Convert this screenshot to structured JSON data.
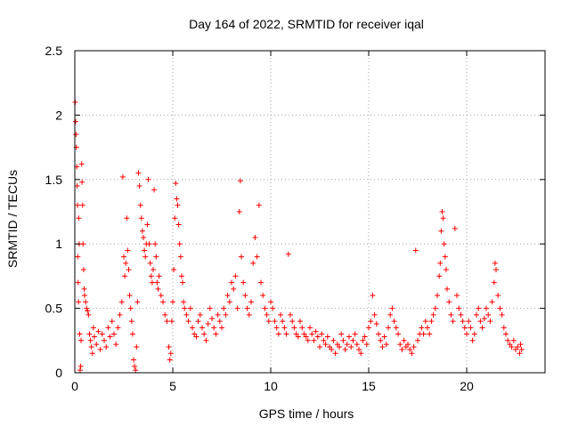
{
  "chart_data": {
    "type": "scatter",
    "title": "Day 164 of 2022, SRMTID for receiver iqal",
    "xlabel": "GPS time / hours",
    "ylabel": "SRMTID / TECUs",
    "xlim": [
      0,
      24
    ],
    "ylim": [
      0,
      2.5
    ],
    "xticks": [
      0,
      5,
      10,
      15,
      20
    ],
    "xtick_labels": [
      "0",
      "5",
      "10",
      "15",
      "20"
    ],
    "yticks": [
      0,
      0.5,
      1,
      1.5,
      2,
      2.5
    ],
    "ytick_labels": [
      "0",
      "0.5",
      "1",
      "1.5",
      "2",
      "2.5"
    ],
    "grid": true,
    "marker": "+",
    "series": [
      {
        "name": "SRMTID",
        "color": "#ff0000",
        "points": [
          [
            0.02,
            2.1
          ],
          [
            0.04,
            1.95
          ],
          [
            0.06,
            1.85
          ],
          [
            0.08,
            1.75
          ],
          [
            0.1,
            1.6
          ],
          [
            0.12,
            1.45
          ],
          [
            0.14,
            1.3
          ],
          [
            0.15,
            0.9
          ],
          [
            0.17,
            0.7
          ],
          [
            0.19,
            0.55
          ],
          [
            0.2,
            1.2
          ],
          [
            0.22,
            1.0
          ],
          [
            0.25,
            0.3
          ],
          [
            0.27,
            0.02
          ],
          [
            0.3,
            0.05
          ],
          [
            0.32,
            0.25
          ],
          [
            0.35,
            1.62
          ],
          [
            0.37,
            1.48
          ],
          [
            0.4,
            1.3
          ],
          [
            0.42,
            1.0
          ],
          [
            0.45,
            0.8
          ],
          [
            0.48,
            0.65
          ],
          [
            0.5,
            0.6
          ],
          [
            0.55,
            0.55
          ],
          [
            0.6,
            0.5
          ],
          [
            0.65,
            0.48
          ],
          [
            0.7,
            0.45
          ],
          [
            0.75,
            0.3
          ],
          [
            0.8,
            0.25
          ],
          [
            0.85,
            0.2
          ],
          [
            0.9,
            0.15
          ],
          [
            0.95,
            0.35
          ],
          [
            1.0,
            0.28
          ],
          [
            1.1,
            0.22
          ],
          [
            1.2,
            0.32
          ],
          [
            1.3,
            0.18
          ],
          [
            1.4,
            0.3
          ],
          [
            1.5,
            0.25
          ],
          [
            1.6,
            0.2
          ],
          [
            1.7,
            0.35
          ],
          [
            1.8,
            0.28
          ],
          [
            1.9,
            0.4
          ],
          [
            2.0,
            0.3
          ],
          [
            2.1,
            0.22
          ],
          [
            2.2,
            0.35
          ],
          [
            2.3,
            0.45
          ],
          [
            2.4,
            0.55
          ],
          [
            2.45,
            1.52
          ],
          [
            2.5,
            0.9
          ],
          [
            2.55,
            0.75
          ],
          [
            2.6,
            0.85
          ],
          [
            2.65,
            1.2
          ],
          [
            2.7,
            0.95
          ],
          [
            2.75,
            0.8
          ],
          [
            2.8,
            0.6
          ],
          [
            2.85,
            0.5
          ],
          [
            2.9,
            0.4
          ],
          [
            2.95,
            0.3
          ],
          [
            3.0,
            0.1
          ],
          [
            3.05,
            0.05
          ],
          [
            3.1,
            0.02
          ],
          [
            3.15,
            0.2
          ],
          [
            3.2,
            0.55
          ],
          [
            3.25,
            1.55
          ],
          [
            3.3,
            1.45
          ],
          [
            3.35,
            1.3
          ],
          [
            3.4,
            1.2
          ],
          [
            3.45,
            1.1
          ],
          [
            3.5,
            1.05
          ],
          [
            3.55,
            0.95
          ],
          [
            3.6,
            0.9
          ],
          [
            3.65,
            1.0
          ],
          [
            3.7,
            1.15
          ],
          [
            3.75,
            1.5
          ],
          [
            3.8,
            1.0
          ],
          [
            3.85,
            0.85
          ],
          [
            3.9,
            0.75
          ],
          [
            3.95,
            0.7
          ],
          [
            4.0,
            0.8
          ],
          [
            4.05,
            1.42
          ],
          [
            4.1,
            1.0
          ],
          [
            4.15,
            0.9
          ],
          [
            4.2,
            0.7
          ],
          [
            4.25,
            0.65
          ],
          [
            4.3,
            0.75
          ],
          [
            4.4,
            0.6
          ],
          [
            4.5,
            0.55
          ],
          [
            4.6,
            0.45
          ],
          [
            4.7,
            0.4
          ],
          [
            4.8,
            0.2
          ],
          [
            4.85,
            0.1
          ],
          [
            4.9,
            0.15
          ],
          [
            4.95,
            0.4
          ],
          [
            5.0,
            0.55
          ],
          [
            5.05,
            0.8
          ],
          [
            5.1,
            1.2
          ],
          [
            5.15,
            1.47
          ],
          [
            5.2,
            1.35
          ],
          [
            5.25,
            1.3
          ],
          [
            5.3,
            1.15
          ],
          [
            5.35,
            1.0
          ],
          [
            5.4,
            0.9
          ],
          [
            5.45,
            0.75
          ],
          [
            5.5,
            0.7
          ],
          [
            5.55,
            0.55
          ],
          [
            5.6,
            0.5
          ],
          [
            5.7,
            0.45
          ],
          [
            5.8,
            0.4
          ],
          [
            5.9,
            0.5
          ],
          [
            6.0,
            0.35
          ],
          [
            6.1,
            0.3
          ],
          [
            6.2,
            0.28
          ],
          [
            6.3,
            0.4
          ],
          [
            6.4,
            0.45
          ],
          [
            6.5,
            0.35
          ],
          [
            6.6,
            0.3
          ],
          [
            6.7,
            0.25
          ],
          [
            6.8,
            0.38
          ],
          [
            6.9,
            0.5
          ],
          [
            7.0,
            0.42
          ],
          [
            7.1,
            0.35
          ],
          [
            7.2,
            0.3
          ],
          [
            7.3,
            0.45
          ],
          [
            7.4,
            0.4
          ],
          [
            7.5,
            0.35
          ],
          [
            7.6,
            0.5
          ],
          [
            7.7,
            0.45
          ],
          [
            7.8,
            0.6
          ],
          [
            7.9,
            0.55
          ],
          [
            8.0,
            0.7
          ],
          [
            8.1,
            0.65
          ],
          [
            8.2,
            0.75
          ],
          [
            8.3,
            0.5
          ],
          [
            8.4,
            1.25
          ],
          [
            8.45,
            1.49
          ],
          [
            8.5,
            0.9
          ],
          [
            8.6,
            0.7
          ],
          [
            8.7,
            0.6
          ],
          [
            8.8,
            0.5
          ],
          [
            8.9,
            0.45
          ],
          [
            9.0,
            0.55
          ],
          [
            9.1,
            0.85
          ],
          [
            9.2,
            1.05
          ],
          [
            9.3,
            0.9
          ],
          [
            9.4,
            1.3
          ],
          [
            9.5,
            0.7
          ],
          [
            9.6,
            0.6
          ],
          [
            9.7,
            0.5
          ],
          [
            9.8,
            0.45
          ],
          [
            9.9,
            0.4
          ],
          [
            10.0,
            0.55
          ],
          [
            10.1,
            0.5
          ],
          [
            10.2,
            0.4
          ],
          [
            10.3,
            0.35
          ],
          [
            10.4,
            0.3
          ],
          [
            10.5,
            0.45
          ],
          [
            10.6,
            0.4
          ],
          [
            10.7,
            0.35
          ],
          [
            10.8,
            0.3
          ],
          [
            10.9,
            0.92
          ],
          [
            11.0,
            0.45
          ],
          [
            11.1,
            0.4
          ],
          [
            11.2,
            0.35
          ],
          [
            11.3,
            0.3
          ],
          [
            11.4,
            0.28
          ],
          [
            11.5,
            0.4
          ],
          [
            11.6,
            0.35
          ],
          [
            11.7,
            0.3
          ],
          [
            11.8,
            0.28
          ],
          [
            11.9,
            0.25
          ],
          [
            12.0,
            0.35
          ],
          [
            12.1,
            0.3
          ],
          [
            12.2,
            0.25
          ],
          [
            12.3,
            0.32
          ],
          [
            12.4,
            0.28
          ],
          [
            12.5,
            0.2
          ],
          [
            12.6,
            0.3
          ],
          [
            12.7,
            0.25
          ],
          [
            12.8,
            0.22
          ],
          [
            12.9,
            0.28
          ],
          [
            13.0,
            0.2
          ],
          [
            13.1,
            0.18
          ],
          [
            13.2,
            0.25
          ],
          [
            13.3,
            0.15
          ],
          [
            13.4,
            0.22
          ],
          [
            13.5,
            0.2
          ],
          [
            13.6,
            0.3
          ],
          [
            13.7,
            0.25
          ],
          [
            13.8,
            0.18
          ],
          [
            13.9,
            0.22
          ],
          [
            14.0,
            0.28
          ],
          [
            14.1,
            0.2
          ],
          [
            14.2,
            0.25
          ],
          [
            14.3,
            0.3
          ],
          [
            14.4,
            0.22
          ],
          [
            14.5,
            0.18
          ],
          [
            14.6,
            0.15
          ],
          [
            14.7,
            0.25
          ],
          [
            14.8,
            0.28
          ],
          [
            14.9,
            0.22
          ],
          [
            15.0,
            0.35
          ],
          [
            15.1,
            0.4
          ],
          [
            15.2,
            0.6
          ],
          [
            15.3,
            0.45
          ],
          [
            15.4,
            0.38
          ],
          [
            15.5,
            0.3
          ],
          [
            15.6,
            0.25
          ],
          [
            15.7,
            0.2
          ],
          [
            15.8,
            0.28
          ],
          [
            15.9,
            0.22
          ],
          [
            16.0,
            0.35
          ],
          [
            16.1,
            0.45
          ],
          [
            16.2,
            0.5
          ],
          [
            16.3,
            0.4
          ],
          [
            16.4,
            0.35
          ],
          [
            16.5,
            0.3
          ],
          [
            16.6,
            0.22
          ],
          [
            16.7,
            0.18
          ],
          [
            16.8,
            0.25
          ],
          [
            16.9,
            0.2
          ],
          [
            17.0,
            0.22
          ],
          [
            17.1,
            0.18
          ],
          [
            17.2,
            0.15
          ],
          [
            17.3,
            0.2
          ],
          [
            17.4,
            0.95
          ],
          [
            17.5,
            0.25
          ],
          [
            17.6,
            0.3
          ],
          [
            17.7,
            0.35
          ],
          [
            17.8,
            0.3
          ],
          [
            17.9,
            0.4
          ],
          [
            18.0,
            0.35
          ],
          [
            18.1,
            0.3
          ],
          [
            18.2,
            0.4
          ],
          [
            18.3,
            0.45
          ],
          [
            18.4,
            0.5
          ],
          [
            18.5,
            0.6
          ],
          [
            18.6,
            0.75
          ],
          [
            18.65,
            0.85
          ],
          [
            18.7,
            1.1
          ],
          [
            18.75,
            1.25
          ],
          [
            18.8,
            1.2
          ],
          [
            18.85,
            1.0
          ],
          [
            18.9,
            0.9
          ],
          [
            18.95,
            0.8
          ],
          [
            19.0,
            0.65
          ],
          [
            19.1,
            0.55
          ],
          [
            19.2,
            0.45
          ],
          [
            19.3,
            0.4
          ],
          [
            19.4,
            1.12
          ],
          [
            19.5,
            0.6
          ],
          [
            19.6,
            0.5
          ],
          [
            19.7,
            0.45
          ],
          [
            19.8,
            0.4
          ],
          [
            19.9,
            0.35
          ],
          [
            20.0,
            0.3
          ],
          [
            20.1,
            0.4
          ],
          [
            20.2,
            0.35
          ],
          [
            20.3,
            0.25
          ],
          [
            20.4,
            0.3
          ],
          [
            20.5,
            0.45
          ],
          [
            20.6,
            0.5
          ],
          [
            20.7,
            0.4
          ],
          [
            20.8,
            0.35
          ],
          [
            20.9,
            0.42
          ],
          [
            21.0,
            0.5
          ],
          [
            21.1,
            0.45
          ],
          [
            21.2,
            0.4
          ],
          [
            21.3,
            0.55
          ],
          [
            21.4,
            0.7
          ],
          [
            21.45,
            0.85
          ],
          [
            21.5,
            0.8
          ],
          [
            21.6,
            0.6
          ],
          [
            21.7,
            0.5
          ],
          [
            21.8,
            0.45
          ],
          [
            21.9,
            0.35
          ],
          [
            22.0,
            0.3
          ],
          [
            22.1,
            0.25
          ],
          [
            22.2,
            0.22
          ],
          [
            22.3,
            0.2
          ],
          [
            22.4,
            0.25
          ],
          [
            22.5,
            0.18
          ],
          [
            22.6,
            0.2
          ],
          [
            22.7,
            0.15
          ],
          [
            22.75,
            0.22
          ],
          [
            22.8,
            0.18
          ]
        ]
      }
    ]
  }
}
